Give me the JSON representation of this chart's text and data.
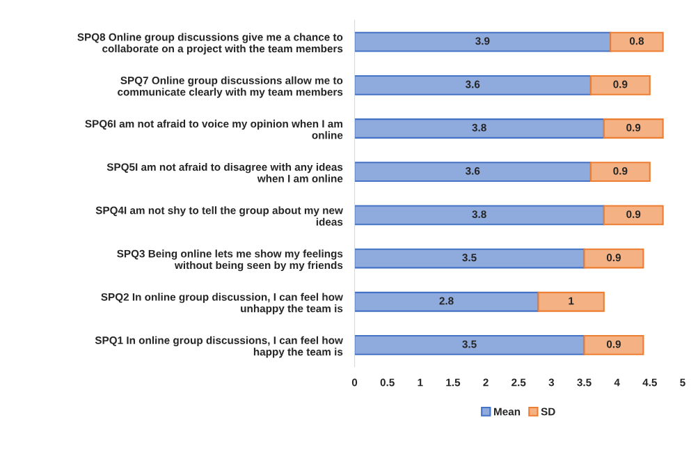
{
  "chart_data": {
    "type": "bar",
    "orientation": "horizontal",
    "stacked": true,
    "categories": [
      "SPQ8 Online group discussions give me a chance to\ncollaborate on a project with the team members",
      "SPQ7 Online group discussions allow me to\ncommunicate clearly with my team members",
      "SPQ6I am not afraid to voice my opinion when I am\nonline",
      "SPQ5I am not afraid to disagree with any ideas\nwhen I am online",
      "SPQ4I am not shy to tell the group about my new\nideas",
      "SPQ3 Being online lets me show my feelings\nwithout being seen by my friends",
      "SPQ2 In online group discussion, I can feel how\nunhappy the team is",
      "SPQ1 In online group discussions, I can feel how\nhappy the team is"
    ],
    "series": [
      {
        "name": "Mean",
        "color": "#8faadc",
        "values": [
          3.9,
          3.6,
          3.8,
          3.6,
          3.8,
          3.5,
          2.8,
          3.5
        ]
      },
      {
        "name": "SD",
        "color": "#f4b183",
        "values": [
          0.8,
          0.9,
          0.9,
          0.9,
          0.9,
          0.9,
          1,
          0.9
        ]
      }
    ],
    "xlim": [
      0,
      5
    ],
    "xticks": [
      0,
      0.5,
      1,
      1.5,
      2,
      2.5,
      3,
      3.5,
      4,
      4.5,
      5
    ],
    "data_labels": true,
    "grid": false,
    "legend": "bottom"
  }
}
